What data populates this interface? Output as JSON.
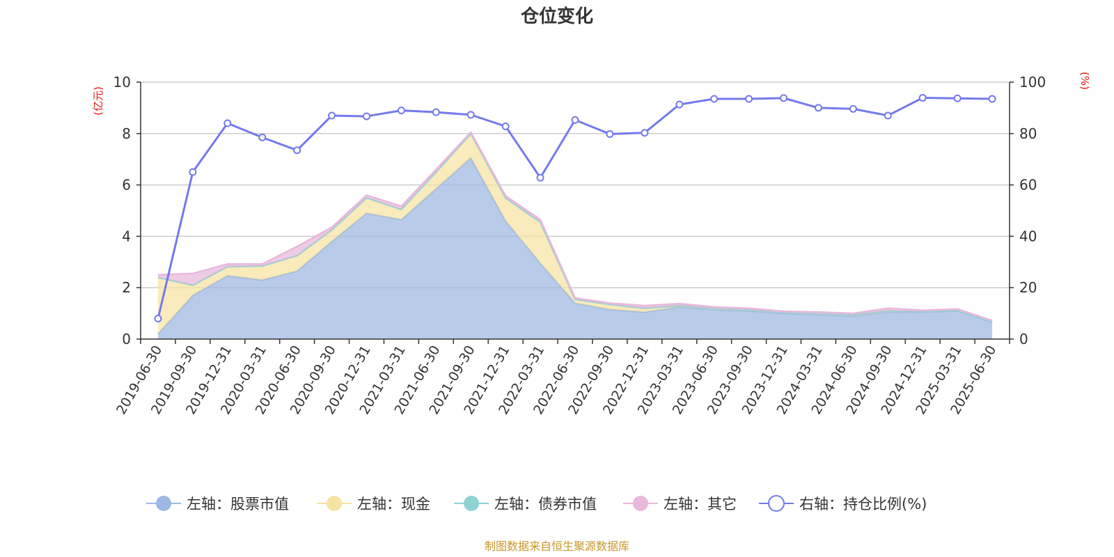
{
  "chart_data": {
    "type": "area",
    "title": "仓位变化",
    "source": "制图数据来自恒生聚源数据库",
    "left_axis": {
      "unit": "(亿元)",
      "min": 0,
      "max": 10,
      "ticks": [
        0,
        2,
        4,
        6,
        8,
        10
      ]
    },
    "right_axis": {
      "unit": "(%)",
      "min": 0,
      "max": 100,
      "ticks": [
        0,
        20,
        40,
        60,
        80,
        100
      ]
    },
    "grid": true,
    "legend_position": "bottom",
    "x": [
      "2019-06-30",
      "2019-09-30",
      "2019-12-31",
      "2020-03-31",
      "2020-06-30",
      "2020-09-30",
      "2020-12-31",
      "2021-03-31",
      "2021-06-30",
      "2021-09-30",
      "2021-12-31",
      "2022-03-31",
      "2022-06-30",
      "2022-09-30",
      "2022-12-31",
      "2023-03-31",
      "2023-06-30",
      "2023-09-30",
      "2023-12-31",
      "2024-03-31",
      "2024-06-30",
      "2024-09-30",
      "2024-12-31",
      "2025-03-31",
      "2025-06-30"
    ],
    "series": [
      {
        "name": "左轴：股票市值",
        "axis": "left",
        "stack": true,
        "color": "#9db8e2",
        "values": [
          0.2,
          1.7,
          2.47,
          2.3,
          2.65,
          3.8,
          4.9,
          4.65,
          5.85,
          7.05,
          4.6,
          2.95,
          1.4,
          1.15,
          1.05,
          1.25,
          1.15,
          1.1,
          1.0,
          0.95,
          0.9,
          1.05,
          1.05,
          1.1,
          0.65
        ]
      },
      {
        "name": "左轴：现金",
        "axis": "left",
        "stack": true,
        "color": "#f7e3a1",
        "values": [
          2.2,
          0.4,
          0.35,
          0.55,
          0.6,
          0.45,
          0.6,
          0.4,
          0.65,
          0.95,
          0.9,
          1.6,
          0.15,
          0.2,
          0.15,
          0.05,
          0.05,
          0.05,
          0.03,
          0.05,
          0.05,
          0.05,
          0.02,
          0.02,
          0.02
        ]
      },
      {
        "name": "左轴：债券市值",
        "axis": "left",
        "stack": true,
        "color": "#8fd3d3",
        "values": [
          0,
          0,
          0,
          0,
          0,
          0,
          0,
          0,
          0,
          0,
          0,
          0,
          0,
          0,
          0,
          0,
          0,
          0,
          0,
          0,
          0,
          0,
          0,
          0,
          0
        ]
      },
      {
        "name": "左轴：其它",
        "axis": "left",
        "stack": true,
        "color": "#e9b8dc",
        "values": [
          0.1,
          0.45,
          0.1,
          0.07,
          0.35,
          0.1,
          0.1,
          0.12,
          0.1,
          0.05,
          0.07,
          0.1,
          0.05,
          0.05,
          0.1,
          0.08,
          0.05,
          0.05,
          0.05,
          0.05,
          0.05,
          0.1,
          0.05,
          0.05,
          0.05
        ]
      },
      {
        "name": "右轴：持仓比例(%)",
        "axis": "right",
        "type": "line",
        "color": "#7479ed",
        "values": [
          8,
          65,
          84,
          78.5,
          73.5,
          87,
          86.7,
          89,
          88.3,
          87.3,
          82.8,
          62.8,
          85.3,
          79.8,
          80.3,
          91.3,
          93.5,
          93.5,
          93.8,
          90,
          89.6,
          87,
          93.9,
          93.7,
          93.5
        ]
      }
    ]
  }
}
